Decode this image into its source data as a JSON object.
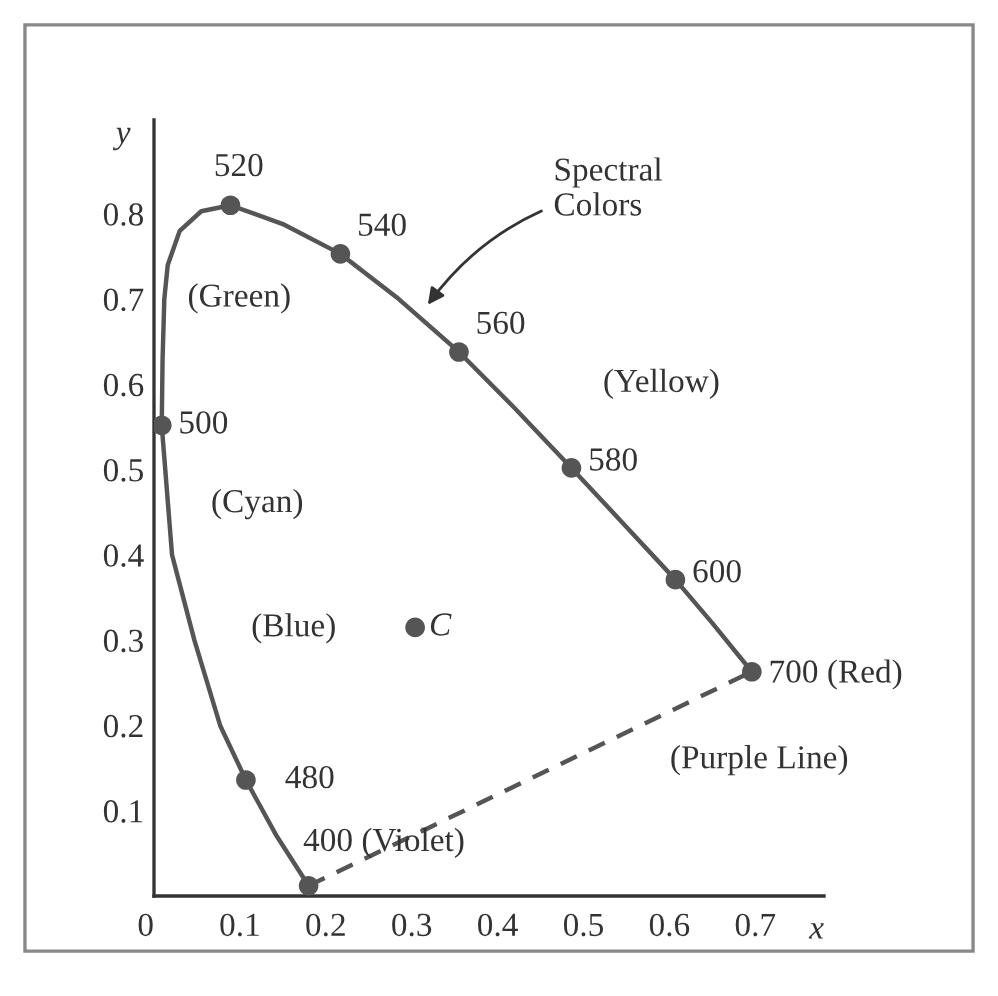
{
  "chart_data": {
    "type": "line",
    "xlabel": "x",
    "ylabel": "y",
    "xlim": [
      0,
      0.78
    ],
    "ylim": [
      0,
      0.91
    ],
    "xticks": [
      {
        "value": 0,
        "label": "0"
      },
      0.1,
      0.2,
      0.3,
      0.4,
      0.5,
      0.6,
      0.7
    ],
    "yticks": [
      0.1,
      0.2,
      0.3,
      0.4,
      0.5,
      0.6,
      0.7,
      0.8
    ],
    "grid": false,
    "series": [
      {
        "color": "#555555",
        "marker": "none",
        "line_style": "solid",
        "x": [
          0.18,
          0.143,
          0.107,
          0.077,
          0.047,
          0.021,
          0.009,
          0.01,
          0.012,
          0.016,
          0.03,
          0.055,
          0.089,
          0.15,
          0.217,
          0.285,
          0.355,
          0.42,
          0.486,
          0.547,
          0.607,
          0.65,
          0.696
        ],
        "values": [
          0.012,
          0.07,
          0.136,
          0.2,
          0.3,
          0.4,
          0.552,
          0.63,
          0.7,
          0.74,
          0.78,
          0.803,
          0.81,
          0.788,
          0.753,
          0.7,
          0.638,
          0.572,
          0.502,
          0.436,
          0.371,
          0.32,
          0.263
        ]
      },
      {
        "type": "scatter",
        "color": "#555555",
        "marker": "circle",
        "x": [
          0.18,
          0.107,
          0.009,
          0.089,
          0.217,
          0.355,
          0.486,
          0.607,
          0.696
        ],
        "values": [
          0.012,
          0.136,
          0.552,
          0.81,
          0.753,
          0.638,
          0.502,
          0.371,
          0.263
        ]
      },
      {
        "color": "#555555",
        "marker": "none",
        "line_style": "dashed",
        "x": [
          0.18,
          0.696
        ],
        "values": [
          0.012,
          0.263
        ]
      },
      {
        "type": "scatter",
        "color": "#555555",
        "marker": "circle",
        "x": [
          0.304
        ],
        "values": [
          0.315
        ]
      }
    ],
    "annotations": [
      {
        "text": "400 (Violet)",
        "x": 0.18,
        "y": 0.012
      },
      {
        "text": "480",
        "x": 0.107,
        "y": 0.136
      },
      {
        "text": "500",
        "x": 0.009,
        "y": 0.552
      },
      {
        "text": "520",
        "x": 0.089,
        "y": 0.81
      },
      {
        "text": "540",
        "x": 0.217,
        "y": 0.753
      },
      {
        "text": "560",
        "x": 0.355,
        "y": 0.638
      },
      {
        "text": "580",
        "x": 0.486,
        "y": 0.502
      },
      {
        "text": "600",
        "x": 0.607,
        "y": 0.371
      },
      {
        "text": "700 (Red)",
        "x": 0.696,
        "y": 0.263
      },
      {
        "text": "C",
        "x": 0.304,
        "y": 0.315
      },
      {
        "text": "Spectral\nColors",
        "x": 0.315,
        "y": 0.688
      },
      "(Green)",
      "(Yellow)",
      "(Cyan)",
      "(Blue)",
      "(Purple Line)"
    ]
  }
}
